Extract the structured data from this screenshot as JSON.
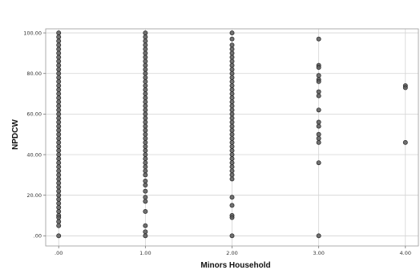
{
  "chart_data": {
    "type": "scatter",
    "title": "",
    "xlabel": "Minors Household",
    "ylabel": "NPDCW",
    "xlim": [
      -0.15,
      4.15
    ],
    "ylim": [
      -5,
      102
    ],
    "grid": true,
    "x_ticks": [
      {
        "value": 0,
        "label": ".00"
      },
      {
        "value": 1,
        "label": "1.00"
      },
      {
        "value": 2,
        "label": "2.00"
      },
      {
        "value": 3,
        "label": "3.00"
      },
      {
        "value": 4,
        "label": "4.00"
      }
    ],
    "y_ticks": [
      {
        "value": 0,
        "label": ".00"
      },
      {
        "value": 20,
        "label": "20.00"
      },
      {
        "value": 40,
        "label": "40.00"
      },
      {
        "value": 60,
        "label": "60.00"
      },
      {
        "value": 80,
        "label": "80.00"
      },
      {
        "value": 100,
        "label": "100.00"
      }
    ],
    "series": [
      {
        "color": "#5b5b5b",
        "points": [
          {
            "x": 0,
            "y": 100
          },
          {
            "x": 0,
            "y": 98
          },
          {
            "x": 0,
            "y": 96
          },
          {
            "x": 0,
            "y": 94
          },
          {
            "x": 0,
            "y": 92
          },
          {
            "x": 0,
            "y": 90
          },
          {
            "x": 0,
            "y": 88
          },
          {
            "x": 0,
            "y": 86
          },
          {
            "x": 0,
            "y": 84
          },
          {
            "x": 0,
            "y": 82
          },
          {
            "x": 0,
            "y": 80
          },
          {
            "x": 0,
            "y": 78
          },
          {
            "x": 0,
            "y": 76
          },
          {
            "x": 0,
            "y": 74
          },
          {
            "x": 0,
            "y": 72
          },
          {
            "x": 0,
            "y": 70
          },
          {
            "x": 0,
            "y": 68
          },
          {
            "x": 0,
            "y": 66
          },
          {
            "x": 0,
            "y": 64
          },
          {
            "x": 0,
            "y": 62
          },
          {
            "x": 0,
            "y": 60
          },
          {
            "x": 0,
            "y": 58
          },
          {
            "x": 0,
            "y": 56
          },
          {
            "x": 0,
            "y": 54
          },
          {
            "x": 0,
            "y": 52
          },
          {
            "x": 0,
            "y": 50
          },
          {
            "x": 0,
            "y": 48
          },
          {
            "x": 0,
            "y": 46
          },
          {
            "x": 0,
            "y": 44
          },
          {
            "x": 0,
            "y": 42
          },
          {
            "x": 0,
            "y": 40
          },
          {
            "x": 0,
            "y": 38
          },
          {
            "x": 0,
            "y": 36
          },
          {
            "x": 0,
            "y": 34
          },
          {
            "x": 0,
            "y": 32
          },
          {
            "x": 0,
            "y": 30
          },
          {
            "x": 0,
            "y": 28
          },
          {
            "x": 0,
            "y": 26
          },
          {
            "x": 0,
            "y": 24
          },
          {
            "x": 0,
            "y": 22
          },
          {
            "x": 0,
            "y": 20
          },
          {
            "x": 0,
            "y": 18
          },
          {
            "x": 0,
            "y": 16
          },
          {
            "x": 0,
            "y": 14
          },
          {
            "x": 0,
            "y": 12
          },
          {
            "x": 0,
            "y": 10
          },
          {
            "x": 0,
            "y": 9
          },
          {
            "x": 0,
            "y": 7
          },
          {
            "x": 0,
            "y": 5
          },
          {
            "x": 0,
            "y": 0
          },
          {
            "x": 1,
            "y": 100
          },
          {
            "x": 1,
            "y": 98
          },
          {
            "x": 1,
            "y": 96
          },
          {
            "x": 1,
            "y": 94
          },
          {
            "x": 1,
            "y": 92
          },
          {
            "x": 1,
            "y": 90
          },
          {
            "x": 1,
            "y": 88
          },
          {
            "x": 1,
            "y": 86
          },
          {
            "x": 1,
            "y": 84
          },
          {
            "x": 1,
            "y": 82
          },
          {
            "x": 1,
            "y": 80
          },
          {
            "x": 1,
            "y": 78
          },
          {
            "x": 1,
            "y": 76
          },
          {
            "x": 1,
            "y": 74
          },
          {
            "x": 1,
            "y": 72
          },
          {
            "x": 1,
            "y": 70
          },
          {
            "x": 1,
            "y": 68
          },
          {
            "x": 1,
            "y": 66
          },
          {
            "x": 1,
            "y": 64
          },
          {
            "x": 1,
            "y": 62
          },
          {
            "x": 1,
            "y": 60
          },
          {
            "x": 1,
            "y": 58
          },
          {
            "x": 1,
            "y": 56
          },
          {
            "x": 1,
            "y": 54
          },
          {
            "x": 1,
            "y": 52
          },
          {
            "x": 1,
            "y": 50
          },
          {
            "x": 1,
            "y": 48
          },
          {
            "x": 1,
            "y": 46
          },
          {
            "x": 1,
            "y": 44
          },
          {
            "x": 1,
            "y": 42
          },
          {
            "x": 1,
            "y": 40
          },
          {
            "x": 1,
            "y": 38
          },
          {
            "x": 1,
            "y": 36
          },
          {
            "x": 1,
            "y": 34
          },
          {
            "x": 1,
            "y": 32
          },
          {
            "x": 1,
            "y": 30
          },
          {
            "x": 1,
            "y": 27
          },
          {
            "x": 1,
            "y": 25
          },
          {
            "x": 1,
            "y": 22
          },
          {
            "x": 1,
            "y": 19
          },
          {
            "x": 1,
            "y": 17
          },
          {
            "x": 1,
            "y": 12
          },
          {
            "x": 1,
            "y": 5
          },
          {
            "x": 1,
            "y": 2
          },
          {
            "x": 1,
            "y": 0
          },
          {
            "x": 2,
            "y": 100
          },
          {
            "x": 2,
            "y": 97
          },
          {
            "x": 2,
            "y": 94
          },
          {
            "x": 2,
            "y": 92
          },
          {
            "x": 2,
            "y": 90
          },
          {
            "x": 2,
            "y": 88
          },
          {
            "x": 2,
            "y": 86
          },
          {
            "x": 2,
            "y": 84
          },
          {
            "x": 2,
            "y": 82
          },
          {
            "x": 2,
            "y": 80
          },
          {
            "x": 2,
            "y": 78
          },
          {
            "x": 2,
            "y": 76
          },
          {
            "x": 2,
            "y": 74
          },
          {
            "x": 2,
            "y": 72
          },
          {
            "x": 2,
            "y": 70
          },
          {
            "x": 2,
            "y": 68
          },
          {
            "x": 2,
            "y": 66
          },
          {
            "x": 2,
            "y": 64
          },
          {
            "x": 2,
            "y": 62
          },
          {
            "x": 2,
            "y": 60
          },
          {
            "x": 2,
            "y": 58
          },
          {
            "x": 2,
            "y": 56
          },
          {
            "x": 2,
            "y": 54
          },
          {
            "x": 2,
            "y": 52
          },
          {
            "x": 2,
            "y": 50
          },
          {
            "x": 2,
            "y": 48
          },
          {
            "x": 2,
            "y": 46
          },
          {
            "x": 2,
            "y": 44
          },
          {
            "x": 2,
            "y": 42
          },
          {
            "x": 2,
            "y": 40
          },
          {
            "x": 2,
            "y": 38
          },
          {
            "x": 2,
            "y": 36
          },
          {
            "x": 2,
            "y": 34
          },
          {
            "x": 2,
            "y": 32
          },
          {
            "x": 2,
            "y": 30
          },
          {
            "x": 2,
            "y": 28
          },
          {
            "x": 2,
            "y": 19
          },
          {
            "x": 2,
            "y": 15
          },
          {
            "x": 2,
            "y": 10
          },
          {
            "x": 2,
            "y": 9
          },
          {
            "x": 2,
            "y": 0
          },
          {
            "x": 3,
            "y": 97
          },
          {
            "x": 3,
            "y": 84
          },
          {
            "x": 3,
            "y": 83
          },
          {
            "x": 3,
            "y": 79
          },
          {
            "x": 3,
            "y": 77
          },
          {
            "x": 3,
            "y": 76
          },
          {
            "x": 3,
            "y": 71
          },
          {
            "x": 3,
            "y": 69
          },
          {
            "x": 3,
            "y": 62
          },
          {
            "x": 3,
            "y": 56
          },
          {
            "x": 3,
            "y": 54
          },
          {
            "x": 3,
            "y": 50
          },
          {
            "x": 3,
            "y": 48
          },
          {
            "x": 3,
            "y": 46
          },
          {
            "x": 3,
            "y": 36
          },
          {
            "x": 3,
            "y": 0
          },
          {
            "x": 4,
            "y": 74
          },
          {
            "x": 4,
            "y": 73
          },
          {
            "x": 4,
            "y": 46
          }
        ]
      }
    ]
  }
}
